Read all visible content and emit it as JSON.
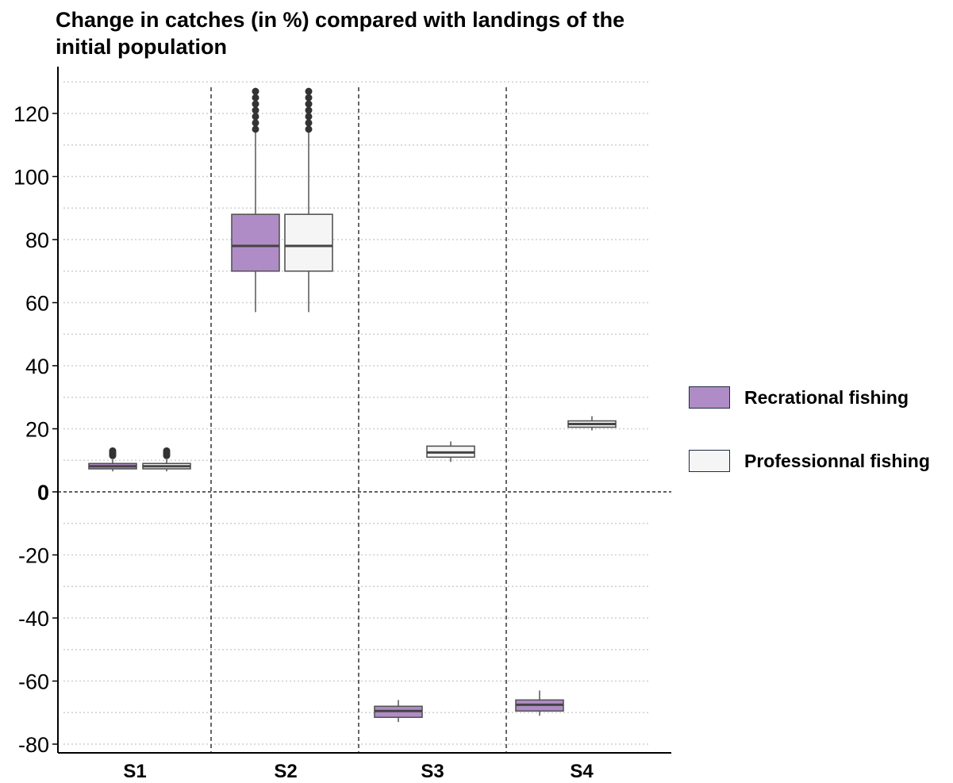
{
  "chart_data": {
    "type": "box",
    "title": "Change in catches (in %) compared with landings of the initial population",
    "xlabel": "",
    "ylabel": "",
    "ylim": [
      -82,
      132
    ],
    "yticks": [
      "120",
      "100",
      "80",
      "60",
      "40",
      "20",
      "0",
      "-20",
      "-40",
      "-60",
      "-80"
    ],
    "categories": [
      "S1",
      "S2",
      "S3",
      "S4"
    ],
    "grid": "horizontal-dotted",
    "legend_position": "right",
    "series": [
      {
        "name": "Recrational fishing",
        "color": "#b08cc6",
        "boxes": [
          {
            "category": "S1",
            "whisker_low": 6.5,
            "q1": 7.3,
            "median": 8.1,
            "q3": 9.0,
            "whisker_high": 10.3,
            "outliers": [
              11.5,
              12.0,
              12.5,
              13.0
            ]
          },
          {
            "category": "S2",
            "whisker_low": 57,
            "q1": 70,
            "median": 78,
            "q3": 88,
            "whisker_high": 114,
            "outliers": [
              115,
              117,
              119,
              121,
              123,
              125,
              127
            ]
          },
          {
            "category": "S3",
            "whisker_low": -73,
            "q1": -71.5,
            "median": -69.5,
            "q3": -68,
            "whisker_high": -66
          },
          {
            "category": "S4",
            "whisker_low": -71,
            "q1": -69.5,
            "median": -67.5,
            "q3": -66,
            "whisker_high": -63
          }
        ]
      },
      {
        "name": "Professionnal fishing",
        "color": "#f5f5f5",
        "boxes": [
          {
            "category": "S1",
            "whisker_low": 6.5,
            "q1": 7.3,
            "median": 8.1,
            "q3": 9.0,
            "whisker_high": 10.3,
            "outliers": [
              11.5,
              12.0,
              12.5,
              13.0
            ]
          },
          {
            "category": "S2",
            "whisker_low": 57,
            "q1": 70,
            "median": 78,
            "q3": 88,
            "whisker_high": 114,
            "outliers": [
              115,
              117,
              119,
              121,
              123,
              125,
              127
            ]
          },
          {
            "category": "S3",
            "whisker_low": 9.5,
            "q1": 11,
            "median": 12.5,
            "q3": 14.5,
            "whisker_high": 16
          },
          {
            "category": "S4",
            "whisker_low": 19.5,
            "q1": 20.5,
            "median": 21.5,
            "q3": 22.5,
            "whisker_high": 24
          }
        ]
      }
    ]
  }
}
